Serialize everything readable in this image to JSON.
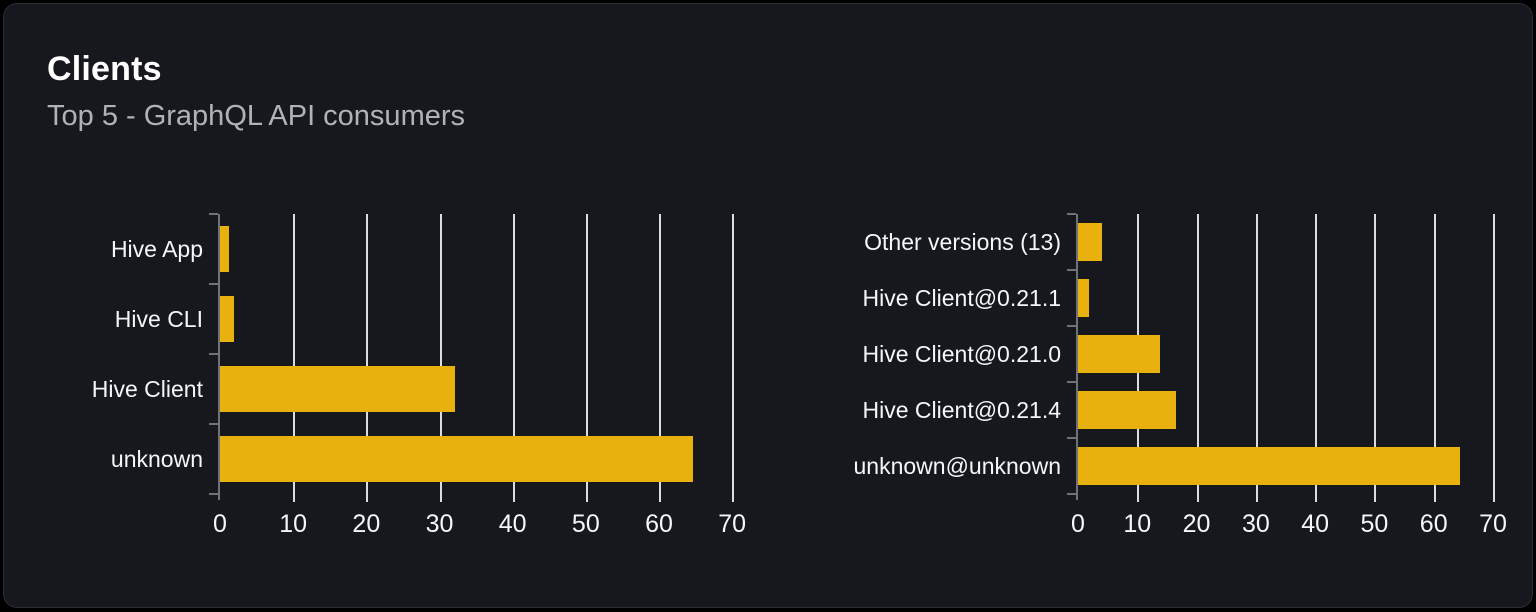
{
  "card": {
    "title": "Clients",
    "subtitle": "Top 5 - GraphQL API consumers"
  },
  "colors": {
    "page_bg": "#000000",
    "card_bg": "#16181d",
    "card_border": "#2a2d34",
    "bar": "#e8b10d",
    "gridline": "#d9dce3",
    "axis": "#6e737b",
    "text_primary": "#f5f6f8",
    "text_muted": "#aeb3ba"
  },
  "chart_data": [
    {
      "type": "bar",
      "name": "clients_by_name",
      "orientation": "horizontal",
      "categories": [
        "Hive App",
        "Hive CLI",
        "Hive Client",
        "unknown"
      ],
      "values": [
        1.2,
        1.9,
        32.1,
        64.6
      ],
      "xlabel": "",
      "ylabel": "",
      "xlim": [
        0,
        70
      ],
      "xticks": [
        0,
        10,
        20,
        30,
        40,
        50,
        60,
        70
      ],
      "grid": true,
      "legend": "none"
    },
    {
      "type": "bar",
      "name": "clients_by_version",
      "orientation": "horizontal",
      "categories": [
        "Other versions (13)",
        "Hive Client@0.21.1",
        "Hive Client@0.21.0",
        "Hive Client@0.21.4",
        "unknown@unknown"
      ],
      "values": [
        4.0,
        1.9,
        13.8,
        16.5,
        64.5
      ],
      "xlabel": "",
      "ylabel": "",
      "xlim": [
        0,
        70
      ],
      "xticks": [
        0,
        10,
        20,
        30,
        40,
        50,
        60,
        70
      ],
      "grid": true,
      "legend": "none"
    }
  ]
}
